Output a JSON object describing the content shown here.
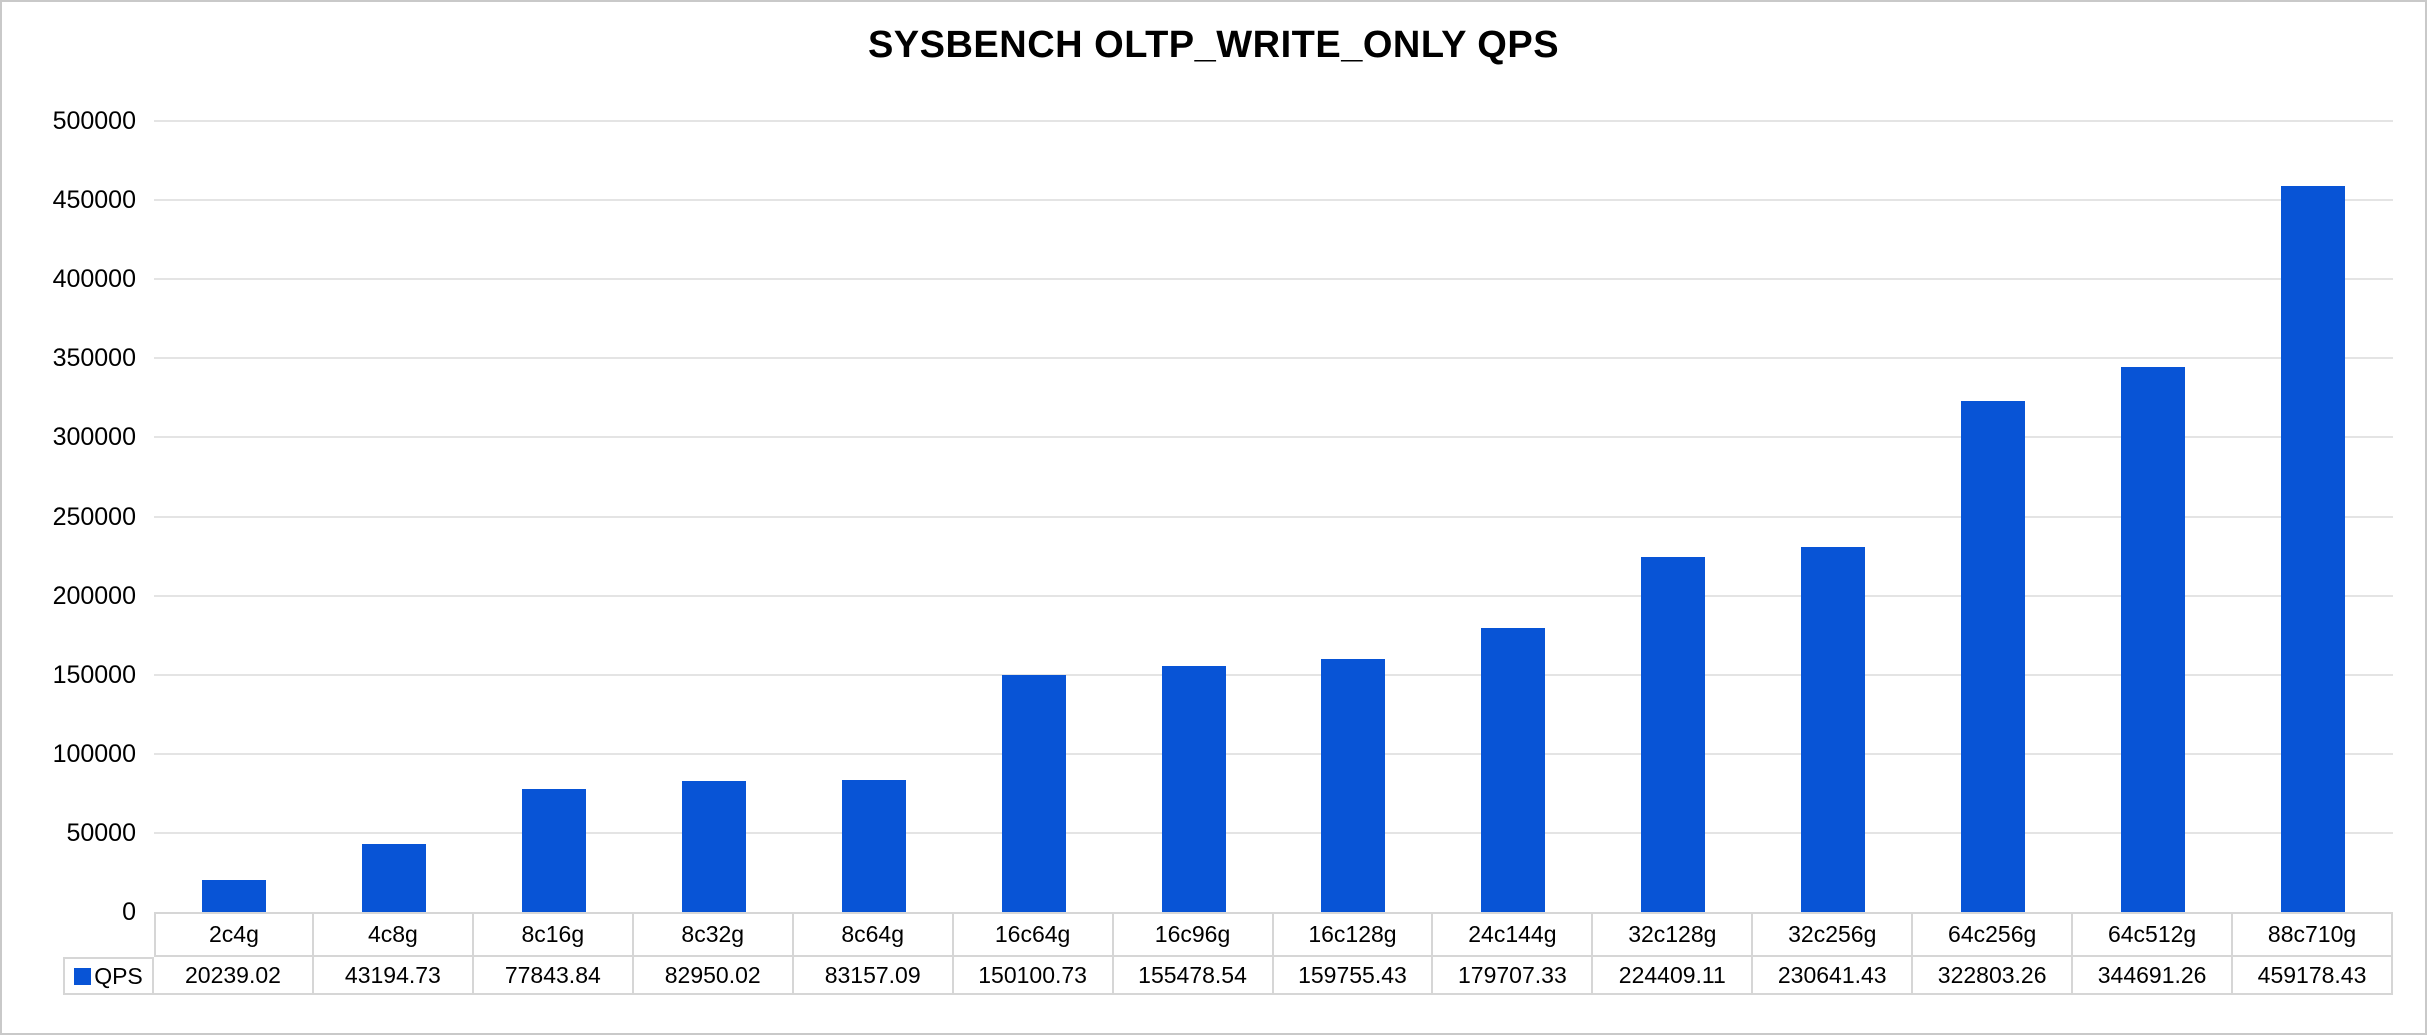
{
  "frame": {
    "background": "#ffffff",
    "border_color": "#c9c9c9"
  },
  "chart_data": {
    "type": "bar",
    "title": "SYSBENCH OLTP_WRITE_ONLY QPS",
    "categories": [
      "2c4g",
      "4c8g",
      "8c16g",
      "8c32g",
      "8c64g",
      "16c64g",
      "16c96g",
      "16c128g",
      "24c144g",
      "32c128g",
      "32c256g",
      "64c256g",
      "64c512g",
      "88c710g"
    ],
    "series": [
      {
        "name": "QPS",
        "color": "#0854d6",
        "values": [
          20239.02,
          43194.73,
          77843.84,
          82950.02,
          83157.09,
          150100.73,
          155478.54,
          159755.43,
          179707.33,
          224409.11,
          230641.43,
          322803.26,
          344691.26,
          459178.43
        ]
      }
    ],
    "xlabel": "",
    "ylabel": "",
    "ylim": [
      0,
      500000
    ],
    "ytick_step": 50000,
    "ytick_labels": [
      "0",
      "50000",
      "100000",
      "150000",
      "200000",
      "250000",
      "300000",
      "350000",
      "400000",
      "450000",
      "500000"
    ],
    "grid": "horizontal-only",
    "legend_position": "data-table-left",
    "data_table_shown": true,
    "value_decimals": 2
  },
  "styles": {
    "gridline_color": "#e4e4e4",
    "table_border_color": "#d6d6d6",
    "text_color": "#000000"
  }
}
